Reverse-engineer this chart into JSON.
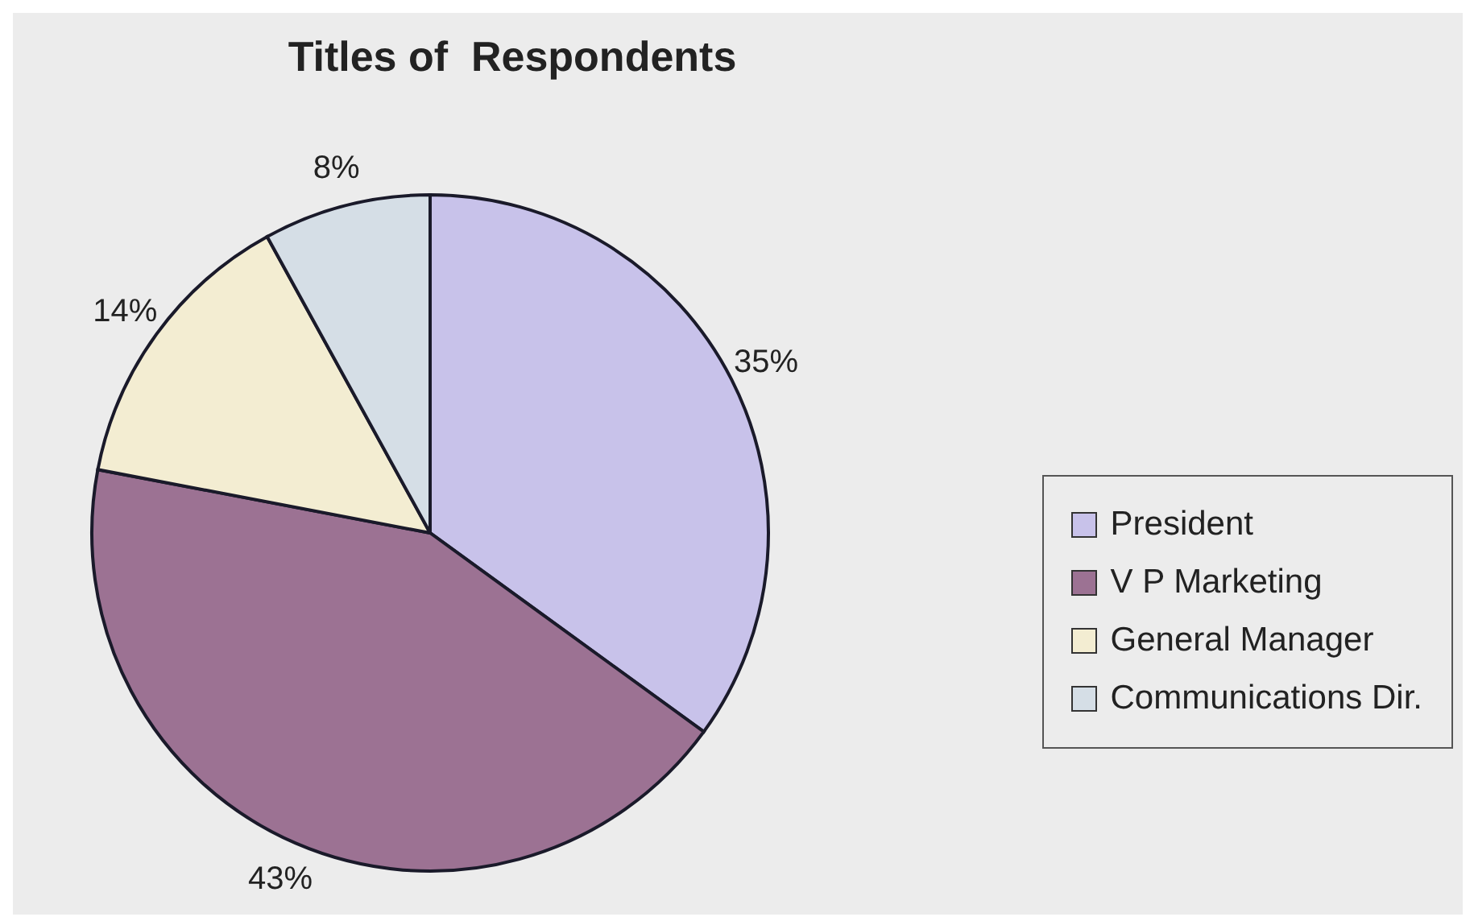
{
  "chart_data": {
    "type": "pie",
    "title": "Titles of  Respondents",
    "categories": [
      "President",
      "V P Marketing",
      "General Manager",
      "Communications Dir."
    ],
    "values": [
      35,
      43,
      14,
      8
    ],
    "value_labels": [
      "35%",
      "43%",
      "14%",
      "8%"
    ],
    "colors": [
      "#c8c2ea",
      "#9c7293",
      "#f3edd2",
      "#d5dee6"
    ],
    "legend": "right"
  }
}
